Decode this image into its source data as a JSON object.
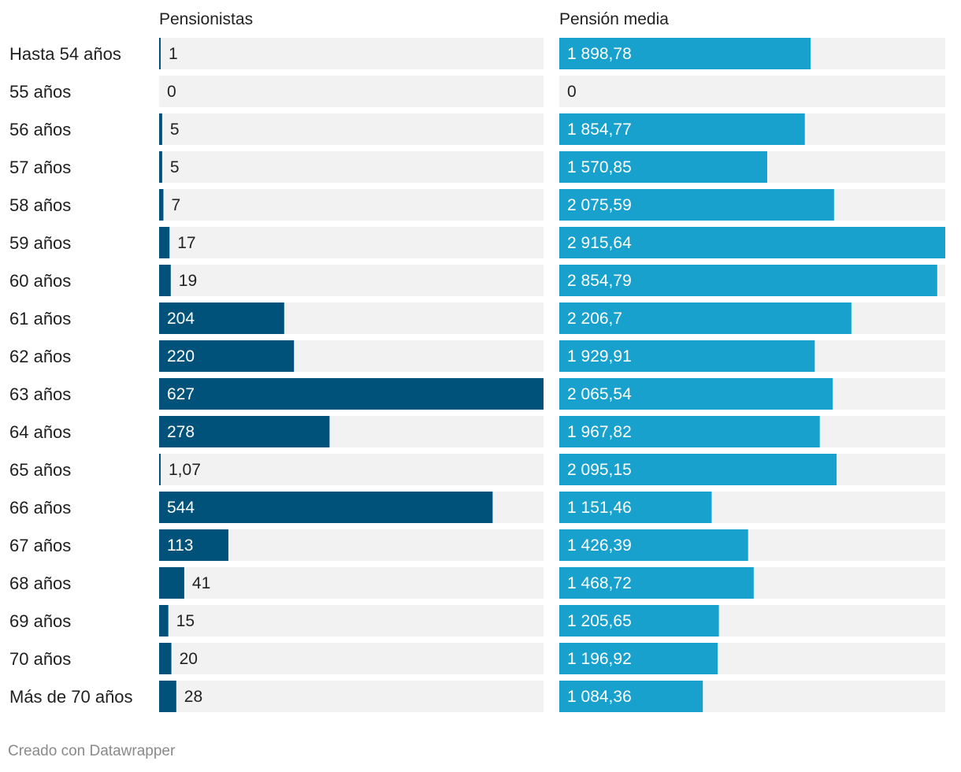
{
  "chart_data": {
    "type": "bar",
    "orientation": "horizontal",
    "categories": [
      "Hasta 54 años",
      "55 años",
      "56 años",
      "57 años",
      "58 años",
      "59 años",
      "60 años",
      "61 años",
      "62 años",
      "63 años",
      "64 años",
      "65 años",
      "66 años",
      "67 años",
      "68 años",
      "69 años",
      "70 años",
      "Más de 70 años"
    ],
    "series": [
      {
        "name": "Pensionistas",
        "values": [
          1,
          0,
          5,
          5,
          7,
          17,
          19,
          204,
          220,
          627,
          278,
          1.07,
          544,
          113,
          41,
          15,
          20,
          28
        ],
        "labels": [
          "1",
          "0",
          "5",
          "5",
          "7",
          "17",
          "19",
          "204",
          "220",
          "627",
          "278",
          "1,07",
          "544",
          "113",
          "41",
          "15",
          "20",
          "28"
        ],
        "xlim": [
          0,
          627
        ],
        "color": "#00527a"
      },
      {
        "name": "Pensión media",
        "values": [
          1898.78,
          0,
          1854.77,
          1570.85,
          2075.59,
          2915.64,
          2854.79,
          2206.7,
          1929.91,
          2065.54,
          1967.82,
          2095.15,
          1151.46,
          1426.39,
          1468.72,
          1205.65,
          1196.92,
          1084.36
        ],
        "labels": [
          "1 898,78",
          "0",
          "1 854,77",
          "1 570,85",
          "2 075,59",
          "2 915,64",
          "2 854,79",
          "2 206,7",
          "1 929,91",
          "2 065,54",
          "1 967,82",
          "2 095,15",
          "1 151,46",
          "1 426,39",
          "1 468,72",
          "1 205,65",
          "1 196,92",
          "1 084,36"
        ],
        "xlim": [
          0,
          2915.64
        ],
        "color": "#18a1cd"
      }
    ],
    "background_bar_color": "#f2f2f2",
    "grid": false,
    "legend": "none"
  },
  "footer": {
    "credit": "Creado con Datawrapper"
  }
}
